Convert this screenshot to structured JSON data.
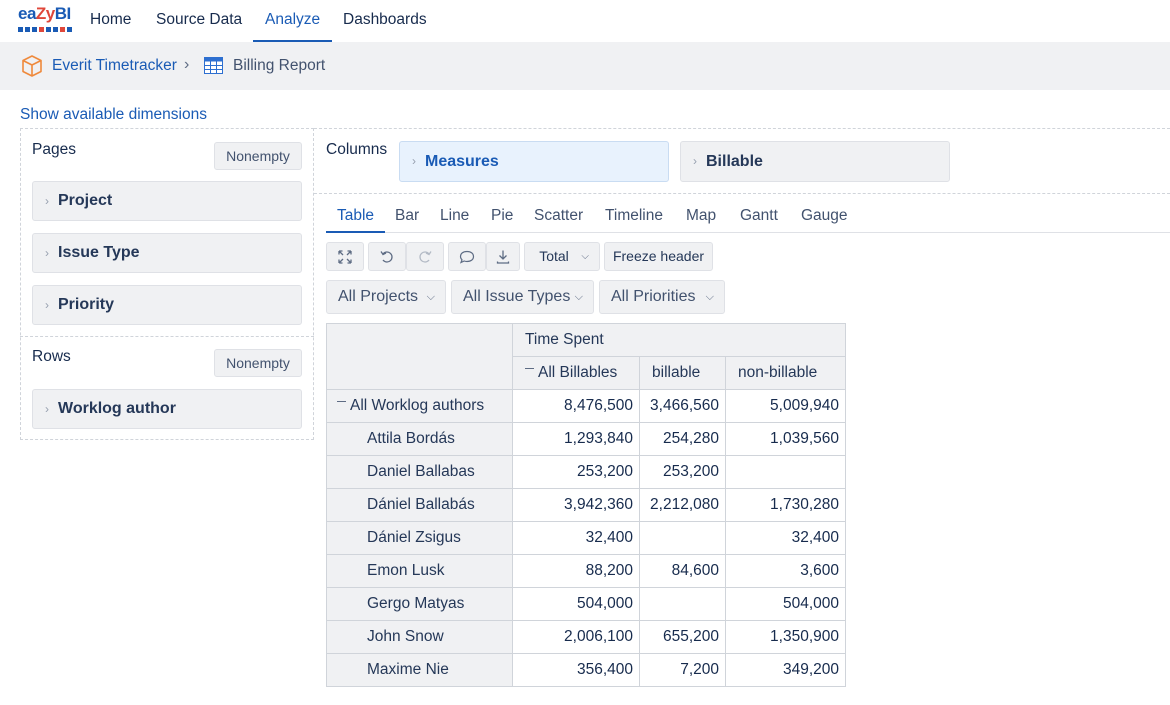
{
  "nav": {
    "logo_text_a": "ea",
    "logo_text_b": "Zy",
    "logo_text_c": "BI",
    "items": [
      "Home",
      "Source Data",
      "Analyze",
      "Dashboards"
    ],
    "active": "Analyze"
  },
  "breadcrumb": {
    "account": "Everit Timetracker",
    "separator": "›",
    "report": "Billing Report"
  },
  "show_dimensions": "Show available dimensions",
  "pages": {
    "label": "Pages",
    "nonempty": "Nonempty",
    "dimensions": [
      "Project",
      "Issue Type",
      "Priority"
    ]
  },
  "rows": {
    "label": "Rows",
    "nonempty": "Nonempty",
    "dimensions": [
      "Worklog author"
    ]
  },
  "columns": {
    "label": "Columns",
    "dimensions": [
      "Measures",
      "Billable"
    ]
  },
  "chart_tabs": [
    "Table",
    "Bar",
    "Line",
    "Pie",
    "Scatter",
    "Timeline",
    "Map",
    "Gantt",
    "Gauge"
  ],
  "active_tab": "Table",
  "toolbar": {
    "total_label": "Total",
    "freeze_label": "Freeze header",
    "icons": [
      "expand-icon",
      "undo-icon",
      "redo-icon",
      "comment-icon",
      "download-icon"
    ]
  },
  "filters": [
    "All Projects",
    "All Issue Types",
    "All Priorities"
  ],
  "table": {
    "measure_header": "Time Spent",
    "column_headers": [
      "All Billables",
      "billable",
      "non-billable"
    ],
    "total_row": {
      "label": "All Worklog authors",
      "values": [
        "8,476,500",
        "3,466,560",
        "5,009,940"
      ]
    },
    "rows": [
      {
        "label": "Attila Bordás",
        "values": [
          "1,293,840",
          "254,280",
          "1,039,560"
        ]
      },
      {
        "label": "Daniel Ballabas",
        "values": [
          "253,200",
          "253,200",
          ""
        ]
      },
      {
        "label": "Dániel Ballabás",
        "values": [
          "3,942,360",
          "2,212,080",
          "1,730,280"
        ]
      },
      {
        "label": "Dániel Zsigus",
        "values": [
          "32,400",
          "",
          "32,400"
        ]
      },
      {
        "label": "Emon Lusk",
        "values": [
          "88,200",
          "84,600",
          "3,600"
        ]
      },
      {
        "label": "Gergo Matyas",
        "values": [
          "504,000",
          "",
          "504,000"
        ]
      },
      {
        "label": "John Snow",
        "values": [
          "2,006,100",
          "655,200",
          "1,350,900"
        ]
      },
      {
        "label": "Maxime Nie",
        "values": [
          "356,400",
          "7,200",
          "349,200"
        ]
      }
    ]
  },
  "colors": {
    "accent": "#1a5bb5",
    "logo_red": "#e0473a",
    "panel_bg": "#f0f1f3",
    "selected_bg": "#e8f2fd"
  }
}
